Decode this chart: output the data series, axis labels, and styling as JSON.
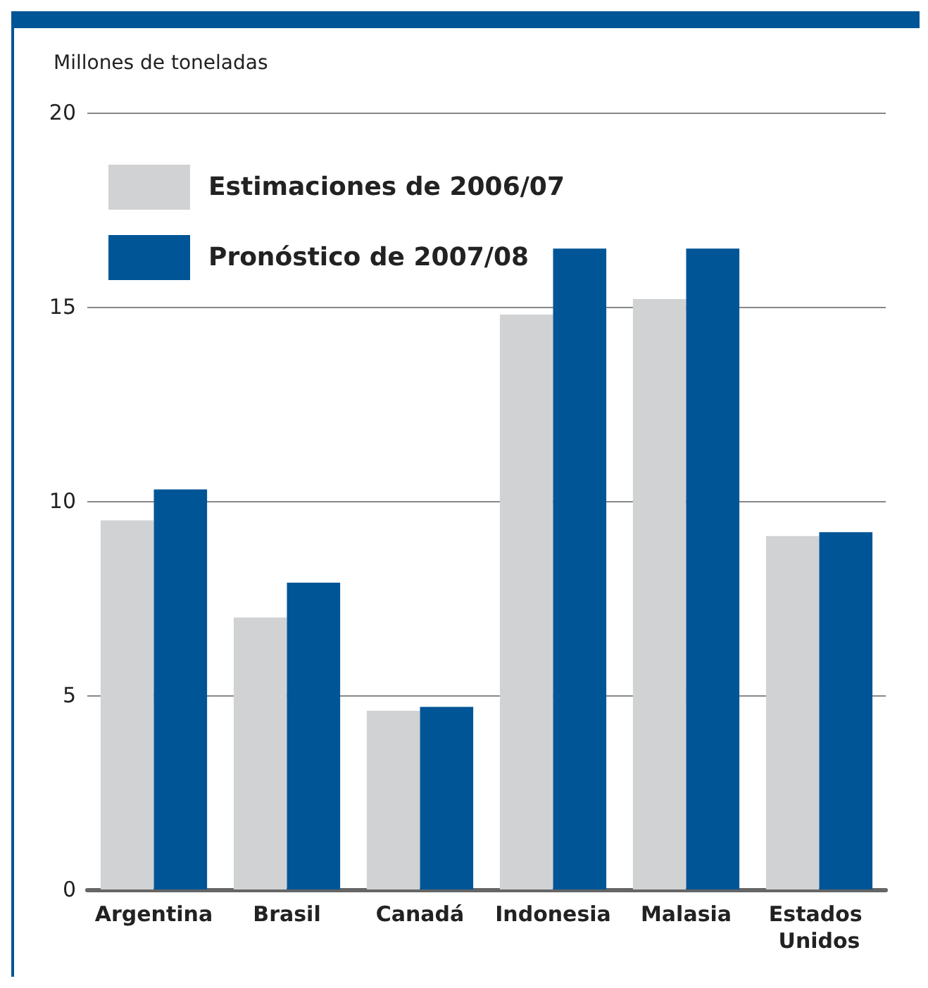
{
  "chart_data": {
    "type": "bar",
    "ylabel": "Millones de toneladas",
    "categories": [
      "Argentina",
      "Brasil",
      "Canadá",
      "Indonesia",
      "Malasia",
      "Estados Unidos"
    ],
    "series": [
      {
        "name": "Estimaciones de 2006/07",
        "color": "#d1d2d4",
        "values": [
          9.5,
          7.0,
          4.6,
          14.8,
          15.2,
          9.1
        ]
      },
      {
        "name": "Pronóstico de 2007/08",
        "color": "#005596",
        "values": [
          10.3,
          7.9,
          4.7,
          16.5,
          16.5,
          9.2
        ]
      }
    ],
    "ylim": [
      0,
      20
    ],
    "yticks": [
      0,
      5,
      10,
      15,
      20
    ],
    "grid": "y",
    "legend": "top left"
  }
}
